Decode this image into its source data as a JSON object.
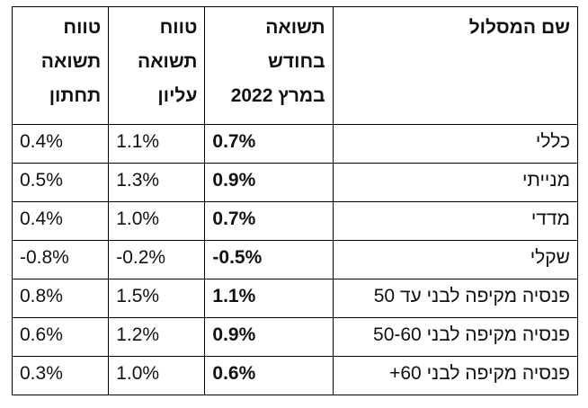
{
  "table": {
    "headers": {
      "route": [
        "שם המסלול"
      ],
      "return": [
        "תשואה",
        "בחודש",
        "במרץ 2022"
      ],
      "upper": [
        "טווח",
        "תשואה",
        "עליון"
      ],
      "lower": [
        "טווח",
        "תשואה",
        "תחתון"
      ]
    },
    "rows": [
      {
        "route": "כללי",
        "return": "0.7%",
        "upper": "1.1%",
        "lower": "0.4%"
      },
      {
        "route": "מנייתי",
        "return": "0.9%",
        "upper": "1.3%",
        "lower": "0.5%"
      },
      {
        "route": "מדדי",
        "return": "0.7%",
        "upper": "1.0%",
        "lower": "0.4%"
      },
      {
        "route": "שקלי",
        "return": "-0.5%",
        "upper": "-0.2%",
        "lower": "-0.8%"
      },
      {
        "route": "פנסיה מקיפה לבני עד 50",
        "return": "1.1%",
        "upper": "1.5%",
        "lower": "0.8%"
      },
      {
        "route": "פנסיה מקיפה לבני 50-60",
        "return": "0.9%",
        "upper": "1.2%",
        "lower": "0.6%"
      },
      {
        "route": "פנסיה מקיפה לבני 60+",
        "return": "0.6%",
        "upper": "1.0%",
        "lower": "0.3%"
      }
    ]
  }
}
